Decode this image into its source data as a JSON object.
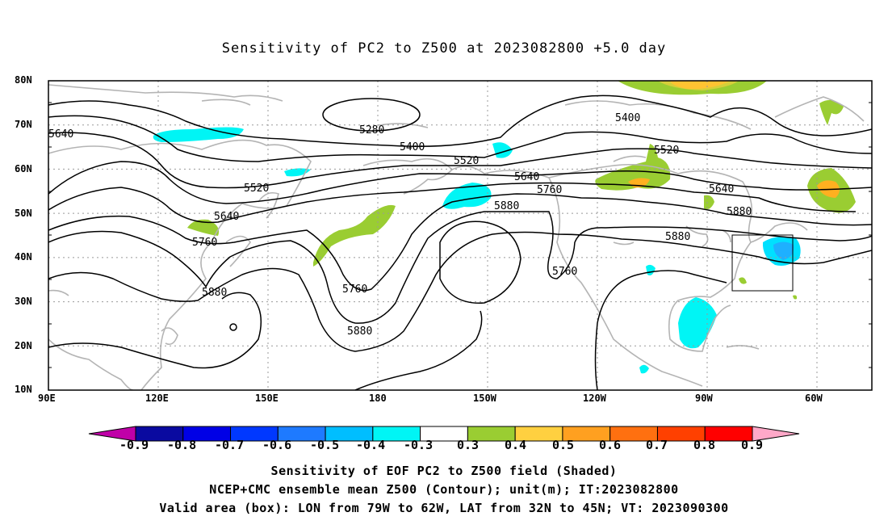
{
  "title": "Sensitivity of PC2 to Z500 at 2023082800 +5.0 day",
  "lat_labels": [
    "80N",
    "70N",
    "60N",
    "50N",
    "40N",
    "30N",
    "20N",
    "10N"
  ],
  "lon_labels": [
    "90E",
    "120E",
    "150E",
    "180",
    "150W",
    "120W",
    "90W",
    "60W"
  ],
  "contour_labels": [
    "5280",
    "5400",
    "5400",
    "5520",
    "5520",
    "5520",
    "5640",
    "5640",
    "5640",
    "5640",
    "5760",
    "5760",
    "5760",
    "5760",
    "5880",
    "5880",
    "5880",
    "5880"
  ],
  "colorbar": {
    "labels": [
      "-0.9",
      "-0.8",
      "-0.7",
      "-0.6",
      "-0.5",
      "-0.4",
      "-0.3",
      "0.3",
      "0.4",
      "0.5",
      "0.6",
      "0.7",
      "0.8",
      "0.9"
    ],
    "colors": [
      "#c000a8",
      "#0a0aa0",
      "#0000e6",
      "#0038ff",
      "#1e7aff",
      "#00beff",
      "#00f5f5",
      "#ffffff",
      "#9acd32",
      "#ffd040",
      "#ffa020",
      "#ff7010",
      "#ff4000",
      "#ff0000",
      "#ffa8c8"
    ]
  },
  "captions": [
    "Sensitivity of EOF PC2 to Z500 field (Shaded)",
    "NCEP+CMC ensemble mean Z500 (Contour); unit(m); IT:2023082800",
    "Valid area (box): LON from 79W to 62W, LAT from 32N to 45N; VT: 2023090300"
  ],
  "box_text": "Valid area (box): LON from 79W to 62W, LAT from 32N to 45N"
}
